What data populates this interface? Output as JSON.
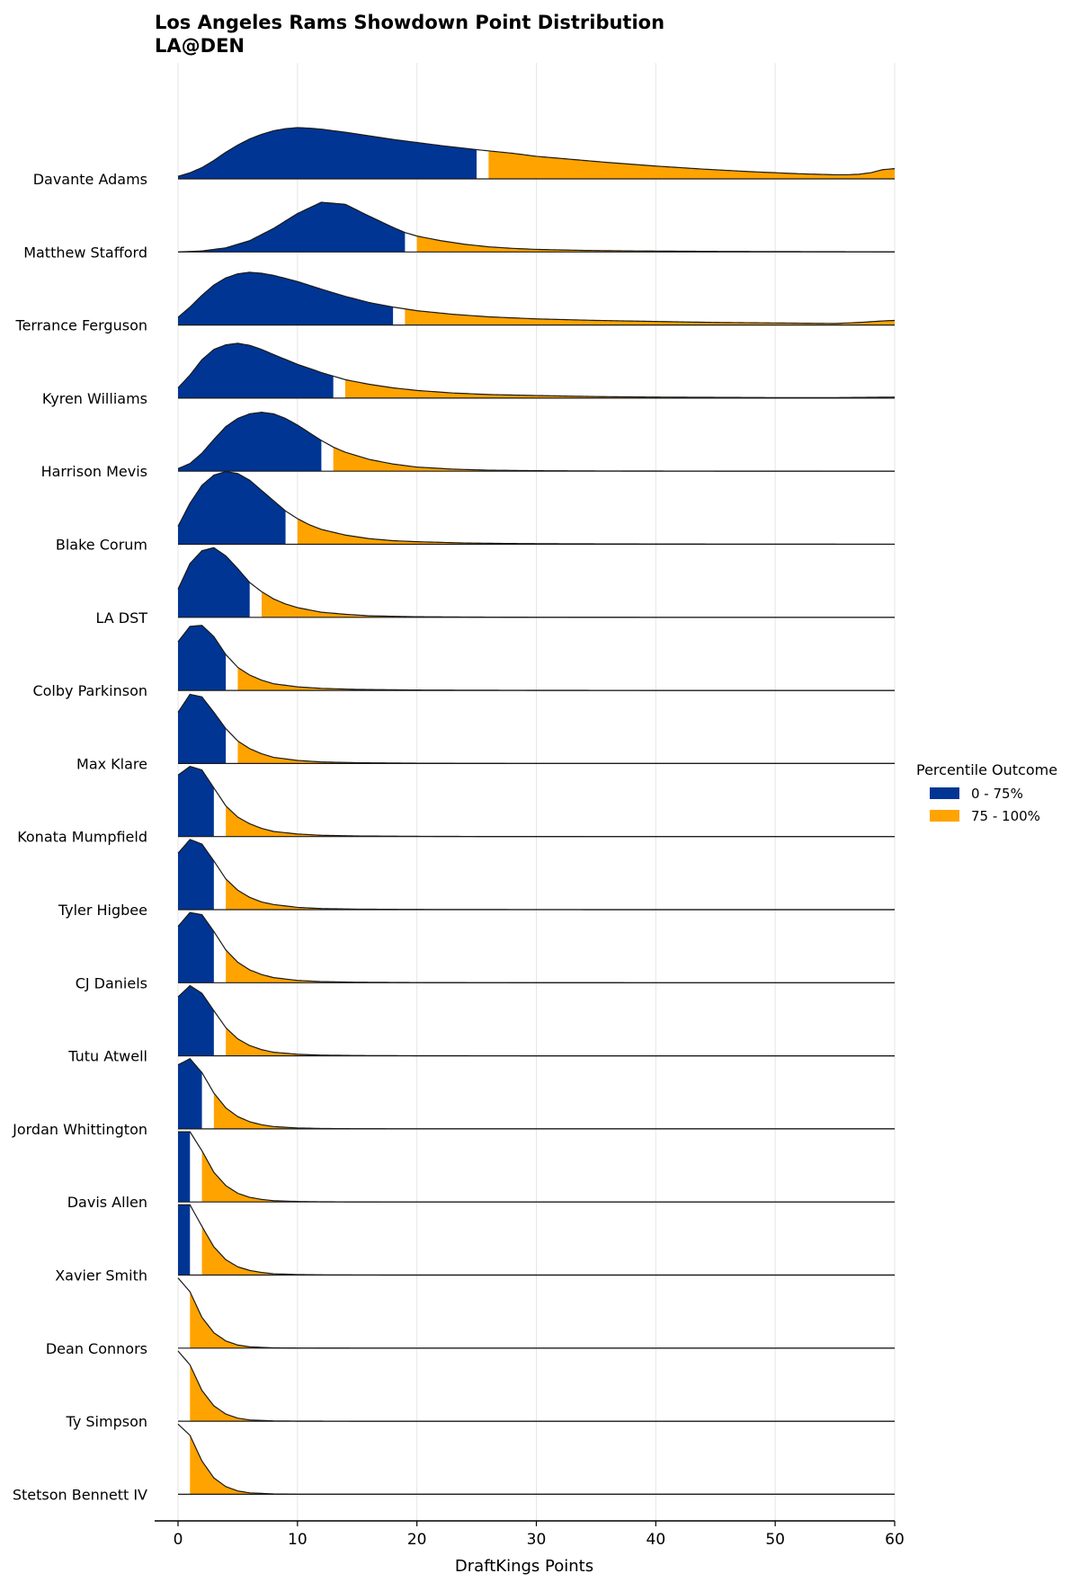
{
  "chart_data": {
    "type": "ridgeline",
    "title": "Los Angeles Rams Showdown Point Distribution",
    "subtitle": "LA@DEN",
    "xlabel": "DraftKings Points",
    "xlim": [
      -2,
      60
    ],
    "xticks": [
      0,
      10,
      20,
      30,
      40,
      50,
      60
    ],
    "grid": "vertical",
    "legend": {
      "title": "Percentile Outcome",
      "placement": "right",
      "entries": [
        {
          "label": "0 - 75%",
          "color": "#003594"
        },
        {
          "label": "75 - 100%",
          "color": "#FFA300"
        }
      ]
    },
    "colors": {
      "low": "#003594",
      "high": "#FFA300",
      "gap": "#ffffff",
      "line": "#1a1a1a",
      "grid": "#e6e6e6"
    },
    "series": [
      {
        "name": "Davante Adams",
        "p75": 25,
        "x": [
          0,
          1,
          2,
          3,
          4,
          5,
          6,
          7,
          8,
          9,
          10,
          11,
          12,
          14,
          16,
          18,
          20,
          22,
          25,
          28,
          30,
          33,
          36,
          40,
          44,
          48,
          52,
          55,
          56,
          57,
          58,
          59,
          60
        ],
        "y": [
          0.05,
          0.12,
          0.22,
          0.36,
          0.52,
          0.66,
          0.78,
          0.87,
          0.94,
          0.98,
          1.0,
          0.99,
          0.97,
          0.91,
          0.84,
          0.77,
          0.71,
          0.65,
          0.57,
          0.5,
          0.44,
          0.38,
          0.32,
          0.25,
          0.19,
          0.14,
          0.1,
          0.08,
          0.08,
          0.09,
          0.12,
          0.18,
          0.2
        ]
      },
      {
        "name": "Matthew Stafford",
        "p75": 19,
        "x": [
          0,
          2,
          4,
          6,
          8,
          10,
          12,
          14,
          16,
          18,
          19,
          20,
          22,
          24,
          26,
          28,
          30,
          34,
          38,
          42,
          46,
          50,
          55,
          60
        ],
        "y": [
          0.0,
          0.02,
          0.08,
          0.22,
          0.46,
          0.75,
          0.97,
          0.93,
          0.7,
          0.48,
          0.38,
          0.31,
          0.22,
          0.15,
          0.1,
          0.07,
          0.05,
          0.03,
          0.02,
          0.015,
          0.01,
          0.008,
          0.005,
          0.003
        ]
      },
      {
        "name": "Terrance Ferguson",
        "p75": 18,
        "x": [
          0,
          1,
          2,
          3,
          4,
          5,
          6,
          7,
          8,
          10,
          12,
          14,
          16,
          18,
          20,
          23,
          26,
          30,
          35,
          40,
          45,
          50,
          55,
          57,
          59,
          60
        ],
        "y": [
          0.15,
          0.35,
          0.58,
          0.78,
          0.92,
          1.0,
          1.03,
          1.01,
          0.97,
          0.85,
          0.7,
          0.56,
          0.44,
          0.35,
          0.28,
          0.21,
          0.16,
          0.12,
          0.09,
          0.07,
          0.05,
          0.04,
          0.03,
          0.05,
          0.08,
          0.09
        ]
      },
      {
        "name": "Kyren Williams",
        "p75": 13,
        "x": [
          0,
          1,
          2,
          3,
          4,
          5,
          6,
          7,
          8,
          10,
          12,
          13,
          14,
          16,
          18,
          20,
          23,
          26,
          30,
          35,
          40,
          45,
          50,
          55,
          60
        ],
        "y": [
          0.2,
          0.45,
          0.75,
          0.95,
          1.04,
          1.07,
          1.03,
          0.95,
          0.85,
          0.66,
          0.5,
          0.43,
          0.36,
          0.27,
          0.2,
          0.15,
          0.1,
          0.07,
          0.05,
          0.03,
          0.02,
          0.015,
          0.01,
          0.01,
          0.02
        ]
      },
      {
        "name": "Harrison Mevis",
        "p75": 12,
        "x": [
          0,
          1,
          2,
          3,
          4,
          5,
          6,
          7,
          8,
          9,
          10,
          11,
          12,
          13,
          14,
          16,
          18,
          20,
          23,
          26,
          30,
          35,
          40,
          50,
          60
        ],
        "y": [
          0.05,
          0.15,
          0.35,
          0.62,
          0.87,
          1.03,
          1.12,
          1.15,
          1.12,
          1.03,
          0.9,
          0.75,
          0.6,
          0.47,
          0.37,
          0.23,
          0.14,
          0.08,
          0.04,
          0.02,
          0.01,
          0.005,
          0.003,
          0.001,
          0.0
        ]
      },
      {
        "name": "Blake Corum",
        "p75": 9,
        "x": [
          0,
          1,
          2,
          3,
          4,
          5,
          6,
          7,
          8,
          9,
          10,
          11,
          12,
          14,
          16,
          18,
          20,
          24,
          28,
          32,
          40,
          50,
          60
        ],
        "y": [
          0.35,
          0.8,
          1.15,
          1.35,
          1.42,
          1.38,
          1.25,
          1.05,
          0.85,
          0.65,
          0.5,
          0.38,
          0.29,
          0.18,
          0.11,
          0.07,
          0.05,
          0.025,
          0.015,
          0.01,
          0.005,
          0.002,
          0.001
        ]
      },
      {
        "name": "LA DST",
        "p75": 6,
        "x": [
          0,
          1,
          2,
          3,
          4,
          5,
          6,
          7,
          8,
          9,
          10,
          12,
          14,
          16,
          20,
          25,
          30,
          40,
          60
        ],
        "y": [
          0.55,
          1.05,
          1.3,
          1.36,
          1.2,
          0.95,
          0.68,
          0.5,
          0.36,
          0.26,
          0.19,
          0.1,
          0.06,
          0.03,
          0.012,
          0.005,
          0.002,
          0.0,
          0.0
        ]
      },
      {
        "name": "Colby Parkinson",
        "p75": 4,
        "x": [
          0,
          1,
          2,
          3,
          4,
          5,
          6,
          7,
          8,
          10,
          12,
          15,
          20,
          25,
          30,
          40,
          60
        ],
        "y": [
          0.95,
          1.25,
          1.27,
          1.05,
          0.7,
          0.45,
          0.3,
          0.2,
          0.13,
          0.07,
          0.04,
          0.02,
          0.008,
          0.004,
          0.002,
          0.0,
          0.0
        ]
      },
      {
        "name": "Max Klare",
        "p75": 4,
        "x": [
          0,
          1,
          2,
          3,
          4,
          5,
          6,
          7,
          8,
          10,
          12,
          15,
          20,
          25,
          30,
          40,
          60
        ],
        "y": [
          1.0,
          1.35,
          1.3,
          1.0,
          0.68,
          0.44,
          0.29,
          0.19,
          0.12,
          0.06,
          0.03,
          0.015,
          0.006,
          0.003,
          0.001,
          0.0,
          0.0
        ]
      },
      {
        "name": "Konata Mumpfield",
        "p75": 3,
        "x": [
          0,
          1,
          2,
          3,
          4,
          5,
          6,
          7,
          8,
          10,
          12,
          15,
          20,
          25,
          30,
          40,
          60
        ],
        "y": [
          1.2,
          1.37,
          1.3,
          0.95,
          0.6,
          0.38,
          0.25,
          0.16,
          0.1,
          0.05,
          0.025,
          0.012,
          0.005,
          0.002,
          0.001,
          0.0,
          0.0
        ]
      },
      {
        "name": "Tyler Higbee",
        "p75": 3,
        "x": [
          0,
          1,
          2,
          3,
          4,
          5,
          6,
          7,
          8,
          10,
          12,
          15,
          20,
          25,
          30,
          40,
          60
        ],
        "y": [
          1.1,
          1.37,
          1.28,
          0.95,
          0.6,
          0.38,
          0.24,
          0.15,
          0.1,
          0.045,
          0.022,
          0.01,
          0.004,
          0.002,
          0.001,
          0.0,
          0.0
        ]
      },
      {
        "name": "CJ Daniels",
        "p75": 3,
        "x": [
          0,
          1,
          2,
          3,
          4,
          5,
          6,
          7,
          8,
          10,
          12,
          15,
          20,
          25,
          30,
          40,
          60
        ],
        "y": [
          1.1,
          1.37,
          1.33,
          1.0,
          0.64,
          0.4,
          0.25,
          0.16,
          0.1,
          0.045,
          0.022,
          0.01,
          0.004,
          0.002,
          0.001,
          0.0,
          0.0
        ]
      },
      {
        "name": "Tutu Atwell",
        "p75": 3,
        "x": [
          0,
          1,
          2,
          3,
          4,
          5,
          6,
          7,
          8,
          10,
          12,
          15,
          20,
          25,
          30,
          40,
          60
        ],
        "y": [
          1.15,
          1.37,
          1.22,
          0.88,
          0.55,
          0.33,
          0.2,
          0.12,
          0.07,
          0.03,
          0.014,
          0.006,
          0.002,
          0.001,
          0.0,
          0.0,
          0.0
        ]
      },
      {
        "name": "Jordan Whittington",
        "p75": 2,
        "x": [
          0,
          1,
          2,
          3,
          4,
          5,
          6,
          7,
          8,
          10,
          12,
          15,
          20,
          30,
          60
        ],
        "y": [
          1.25,
          1.37,
          1.1,
          0.7,
          0.41,
          0.24,
          0.14,
          0.08,
          0.045,
          0.018,
          0.008,
          0.003,
          0.001,
          0.0,
          0.0
        ]
      },
      {
        "name": "Davis Allen",
        "p75": 1,
        "x": [
          0,
          1,
          2,
          3,
          4,
          5,
          6,
          7,
          8,
          10,
          12,
          15,
          20,
          30,
          60
        ],
        "y": [
          1.37,
          1.37,
          1.0,
          0.58,
          0.32,
          0.17,
          0.09,
          0.05,
          0.025,
          0.01,
          0.004,
          0.001,
          0.0,
          0.0,
          0.0
        ]
      },
      {
        "name": "Xavier Smith",
        "p75": 1,
        "x": [
          0,
          1,
          2,
          3,
          4,
          5,
          6,
          7,
          8,
          10,
          12,
          15,
          20,
          30,
          60
        ],
        "y": [
          1.37,
          1.37,
          0.95,
          0.55,
          0.3,
          0.16,
          0.09,
          0.05,
          0.025,
          0.01,
          0.004,
          0.001,
          0.0,
          0.0,
          0.0
        ]
      },
      {
        "name": "Dean Connors",
        "p75": 0.5,
        "x": [
          0,
          1,
          2,
          3,
          4,
          5,
          6,
          8,
          10,
          15,
          20,
          60
        ],
        "y": [
          1.37,
          1.1,
          0.6,
          0.3,
          0.14,
          0.06,
          0.025,
          0.006,
          0.002,
          0.0,
          0.0,
          0.0
        ]
      },
      {
        "name": "Ty Simpson",
        "p75": 0.5,
        "x": [
          0,
          1,
          2,
          3,
          4,
          5,
          6,
          8,
          10,
          15,
          20,
          60
        ],
        "y": [
          1.37,
          1.1,
          0.6,
          0.3,
          0.14,
          0.06,
          0.025,
          0.006,
          0.002,
          0.0,
          0.0,
          0.0
        ]
      },
      {
        "name": "Stetson Bennett IV",
        "p75": 0.5,
        "x": [
          0,
          1,
          2,
          3,
          4,
          5,
          6,
          8,
          10,
          15,
          20,
          60
        ],
        "y": [
          1.37,
          1.15,
          0.65,
          0.32,
          0.15,
          0.065,
          0.028,
          0.007,
          0.002,
          0.0,
          0.0,
          0.0
        ]
      }
    ]
  }
}
